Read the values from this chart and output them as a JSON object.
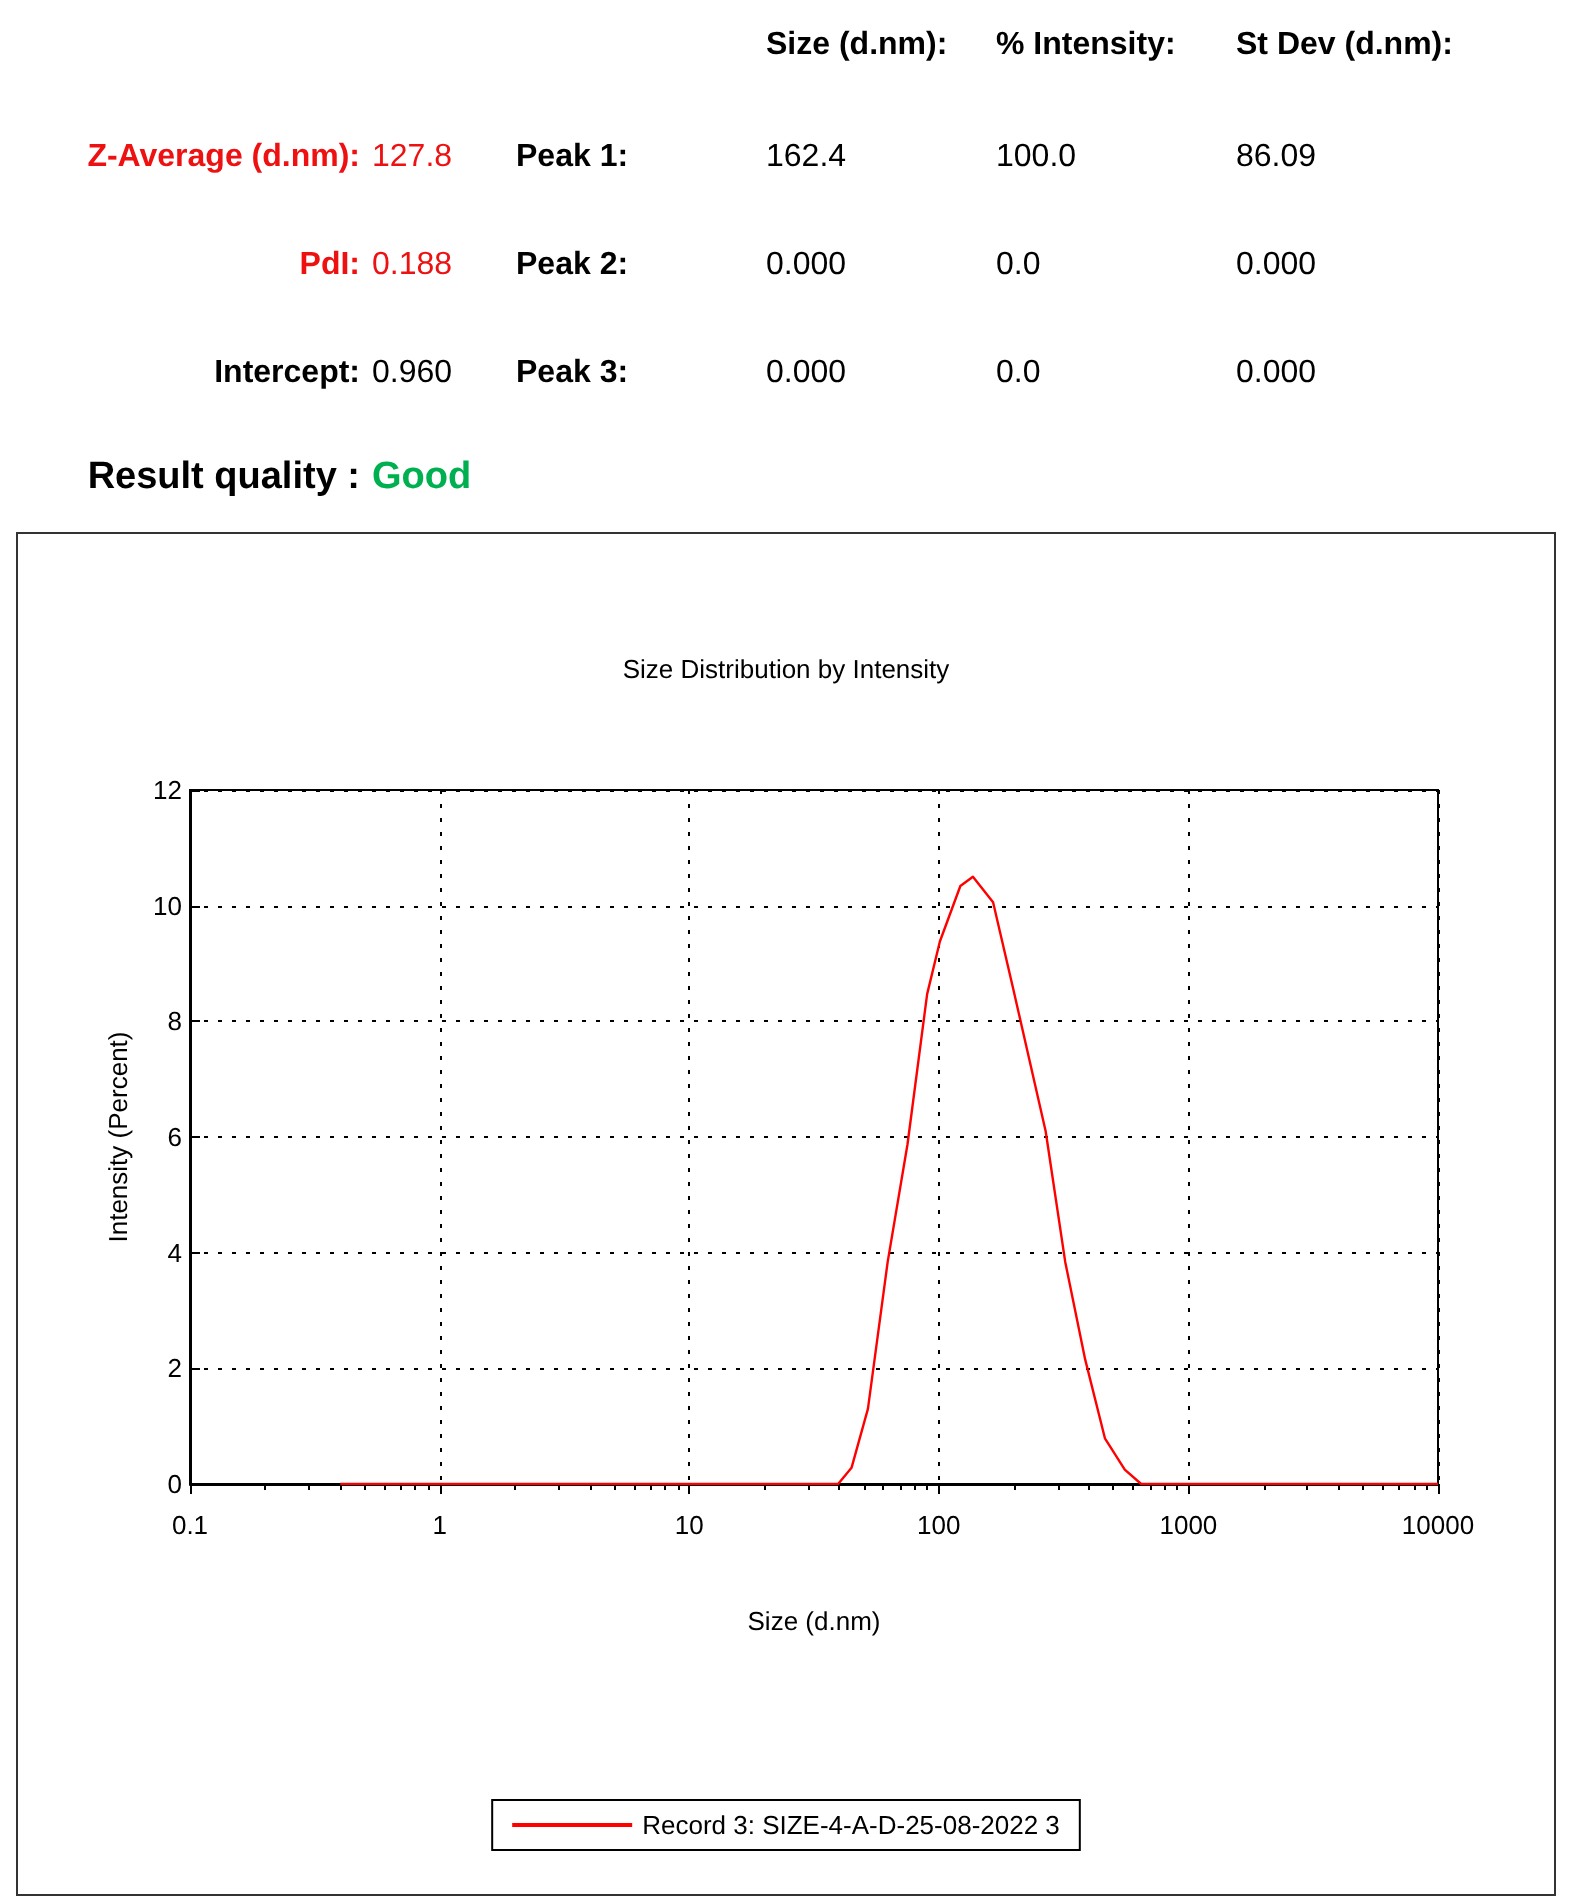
{
  "chart_data": [
    {
      "type": "other",
      "annotations": [
        "Size (d.nm):",
        "% Intensity:",
        "St Dev (d.nm):",
        "Z-Average (d.nm):",
        "127.8",
        "Peak 1:",
        "162.4",
        "100.0",
        "86.09",
        "PdI:",
        "0.188",
        "Peak 2:",
        "0.000",
        "0.0",
        "0.000",
        "Intercept:",
        "0.960",
        "Peak 3:",
        "0.000",
        "0.0",
        "0.000",
        "Result quality :",
        "Good"
      ]
    },
    {
      "type": "line",
      "title": "Size Distribution by Intensity",
      "xlabel": "Size (d.nm)",
      "ylabel": "Intensity (Percent)",
      "log": "x",
      "xlim": [
        0.1,
        10000
      ],
      "xticks": [
        0.1,
        1,
        10,
        100,
        1000,
        10000
      ],
      "ylim": [
        0,
        12
      ],
      "yticks": [
        0,
        2,
        4,
        6,
        8,
        10,
        12
      ],
      "grid": true,
      "legend": "bottom",
      "x": [
        0.4,
        39.5,
        44.7,
        52,
        62.4,
        74.9,
        89.8,
        101,
        122,
        137,
        165,
        198,
        268,
        321,
        386,
        463,
        556,
        647,
        10000
      ],
      "series": [
        {
          "name": "Record 3: SIZE-4-A-D-25-08-2022 3",
          "color": "#ff0000",
          "values": [
            0,
            0,
            0.28,
            1.3,
            3.84,
            5.87,
            8.47,
            9.38,
            10.34,
            10.5,
            10.06,
            8.59,
            6.1,
            3.84,
            2.15,
            0.79,
            0.25,
            0,
            0
          ]
        }
      ]
    }
  ]
}
